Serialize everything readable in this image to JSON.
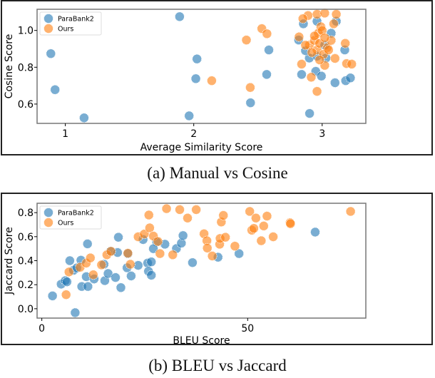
{
  "colors": {
    "ParaBank2": "#1f77b4",
    "Ours": "#ff7f0e"
  },
  "captions": {
    "a": "(a) Manual vs Cosine",
    "b": "(b) BLEU vs Jaccard"
  },
  "chart_data": [
    {
      "type": "scatter",
      "title": "",
      "xlabel": "Average Similarity Score",
      "ylabel": "Cosine Score",
      "xlim": [
        0.78,
        3.34
      ],
      "ylim": [
        0.495,
        1.115
      ],
      "xticks": [
        1,
        2,
        3
      ],
      "xtick_labels": [
        "1",
        "2",
        "3"
      ],
      "yticks": [
        0.6,
        0.8,
        1.0
      ],
      "ytick_labels": [
        "0.6",
        "0.8",
        "1.0"
      ],
      "grid": false,
      "legend": {
        "placement": "top-left",
        "entries": [
          "ParaBank2",
          "Ours"
        ]
      },
      "series": [
        {
          "name": "ParaBank2",
          "points": [
            [
              0.887,
              0.874
            ],
            [
              0.92,
              0.678
            ],
            [
              1.146,
              0.525
            ],
            [
              1.89,
              1.075
            ],
            [
              2.025,
              0.845
            ],
            [
              2.016,
              0.738
            ],
            [
              1.964,
              0.536
            ],
            [
              2.585,
              0.894
            ],
            [
              2.568,
              0.761
            ],
            [
              2.442,
              0.607
            ],
            [
              2.902,
              0.549
            ],
            [
              2.817,
              0.948
            ],
            [
              2.854,
              1.036
            ],
            [
              2.84,
              0.761
            ],
            [
              2.95,
              0.778
            ],
            [
              2.994,
              0.752
            ],
            [
              3.1,
              0.716
            ],
            [
              3.183,
              0.727
            ],
            [
              3.22,
              0.742
            ],
            [
              3.176,
              0.894
            ],
            [
              3.11,
              1.05
            ],
            [
              3.07,
              0.985
            ],
            [
              2.96,
              1.05
            ],
            [
              2.9,
              0.85
            ],
            [
              2.87,
              0.89
            ],
            [
              3.03,
              0.85
            ],
            [
              3.02,
              0.92
            ],
            [
              2.96,
              0.86
            ]
          ]
        },
        {
          "name": "Ours",
          "points": [
            [
              2.14,
              0.727
            ],
            [
              2.44,
              0.69
            ],
            [
              2.41,
              0.948
            ],
            [
              2.53,
              1.01
            ],
            [
              2.57,
              0.982
            ],
            [
              2.84,
              0.817
            ],
            [
              2.82,
              0.965
            ],
            [
              2.915,
              0.746
            ],
            [
              2.96,
              0.669
            ],
            [
              3.02,
              0.81
            ],
            [
              3.1,
              0.848
            ],
            [
              3.18,
              0.93
            ],
            [
              3.19,
              0.82
            ],
            [
              3.23,
              0.817
            ],
            [
              3.11,
              1.088
            ],
            [
              2.96,
              1.088
            ],
            [
              2.89,
              1.081
            ],
            [
              2.85,
              1.064
            ],
            [
              3.02,
              1.094
            ],
            [
              2.9,
              0.92
            ],
            [
              2.94,
              0.946
            ],
            [
              2.97,
              0.985
            ],
            [
              2.99,
              1.02
            ],
            [
              2.96,
              0.894
            ],
            [
              3.04,
              0.907
            ],
            [
              3.07,
              0.946
            ],
            [
              3.09,
              1.036
            ],
            [
              2.87,
              0.92
            ],
            [
              2.92,
              0.88
            ],
            [
              3.01,
              0.87
            ],
            [
              3.05,
              0.894
            ],
            [
              2.98,
              0.84
            ],
            [
              2.94,
              0.97
            ],
            [
              3.0,
              1.0
            ],
            [
              2.98,
              0.93
            ],
            [
              3.02,
              0.96
            ]
          ]
        }
      ]
    },
    {
      "type": "scatter",
      "title": "",
      "xlabel": "BLEU Score",
      "ylabel": "Jaccard Score",
      "xlim": [
        -1.15,
        78.7
      ],
      "ylim": [
        -0.078,
        0.878
      ],
      "xticks": [
        0,
        50
      ],
      "xtick_labels": [
        "0",
        "50"
      ],
      "yticks": [
        0.0,
        0.2,
        0.4,
        0.6,
        0.8
      ],
      "ytick_labels": [
        "0.0",
        "0.2",
        "0.4",
        "0.6",
        "0.8"
      ],
      "grid": false,
      "legend": {
        "placement": "top-left",
        "entries": [
          "ParaBank2",
          "Ours"
        ]
      },
      "series": [
        {
          "name": "ParaBank2",
          "points": [
            [
              2.6,
              0.107
            ],
            [
              8.1,
              -0.033
            ],
            [
              4.7,
              0.205
            ],
            [
              5.7,
              0.234
            ],
            [
              6.1,
              0.224
            ],
            [
              6.8,
              0.4
            ],
            [
              7.7,
              0.32
            ],
            [
              8.5,
              0.34
            ],
            [
              9.5,
              0.404
            ],
            [
              9.7,
              0.185
            ],
            [
              11.1,
              0.54
            ],
            [
              11.2,
              0.185
            ],
            [
              10.8,
              0.267
            ],
            [
              12.7,
              0.248
            ],
            [
              15.3,
              0.234
            ],
            [
              16.1,
              0.293
            ],
            [
              15.1,
              0.37
            ],
            [
              16.7,
              0.478
            ],
            [
              18.4,
              0.468
            ],
            [
              18.6,
              0.595
            ],
            [
              17.9,
              0.26
            ],
            [
              19.2,
              0.176
            ],
            [
              20.7,
              0.341
            ],
            [
              20.9,
              0.459
            ],
            [
              21.7,
              0.273
            ],
            [
              23.4,
              0.361
            ],
            [
              24.6,
              0.576
            ],
            [
              25.7,
              0.38
            ],
            [
              25.9,
              0.312
            ],
            [
              26.6,
              0.39
            ],
            [
              26.6,
              0.279
            ],
            [
              27.9,
              0.556
            ],
            [
              29.9,
              0.537
            ],
            [
              32.7,
              0.501
            ],
            [
              33.9,
              0.546
            ],
            [
              34.3,
              0.609
            ],
            [
              36.6,
              0.384
            ],
            [
              42.8,
              0.429
            ],
            [
              47.9,
              0.459
            ],
            [
              66.4,
              0.638
            ],
            [
              27.1,
              0.5
            ]
          ]
        },
        {
          "name": "Ours",
          "points": [
            [
              5.9,
              0.117
            ],
            [
              6.6,
              0.306
            ],
            [
              9.3,
              0.345
            ],
            [
              10.8,
              0.38
            ],
            [
              11.8,
              0.423
            ],
            [
              12.5,
              0.283
            ],
            [
              14.5,
              0.365
            ],
            [
              15.8,
              0.449
            ],
            [
              16.8,
              0.478
            ],
            [
              20.9,
              0.462
            ],
            [
              21.5,
              0.37
            ],
            [
              23.4,
              0.599
            ],
            [
              24.9,
              0.622
            ],
            [
              26.0,
              0.78
            ],
            [
              26.2,
              0.673
            ],
            [
              27.1,
              0.605
            ],
            [
              28.2,
              0.56
            ],
            [
              28.7,
              0.459
            ],
            [
              30.3,
              0.833
            ],
            [
              31.8,
              0.449
            ],
            [
              33.5,
              0.825
            ],
            [
              35.4,
              0.755
            ],
            [
              37.5,
              0.825
            ],
            [
              39.4,
              0.624
            ],
            [
              40.1,
              0.566
            ],
            [
              40.2,
              0.505
            ],
            [
              41.4,
              0.439
            ],
            [
              43.2,
              0.537
            ],
            [
              43.3,
              0.585
            ],
            [
              43.6,
              0.722
            ],
            [
              44.1,
              0.777
            ],
            [
              44.6,
              0.595
            ],
            [
              46.9,
              0.521
            ],
            [
              50.5,
              0.81
            ],
            [
              51.0,
              0.654
            ],
            [
              51.5,
              0.669
            ],
            [
              52.0,
              0.755
            ],
            [
              53.3,
              0.566
            ],
            [
              53.9,
              0.689
            ],
            [
              54.7,
              0.771
            ],
            [
              56.2,
              0.599
            ],
            [
              60.3,
              0.716
            ],
            [
              60.4,
              0.708
            ],
            [
              75.0,
              0.81
            ]
          ]
        }
      ]
    }
  ]
}
